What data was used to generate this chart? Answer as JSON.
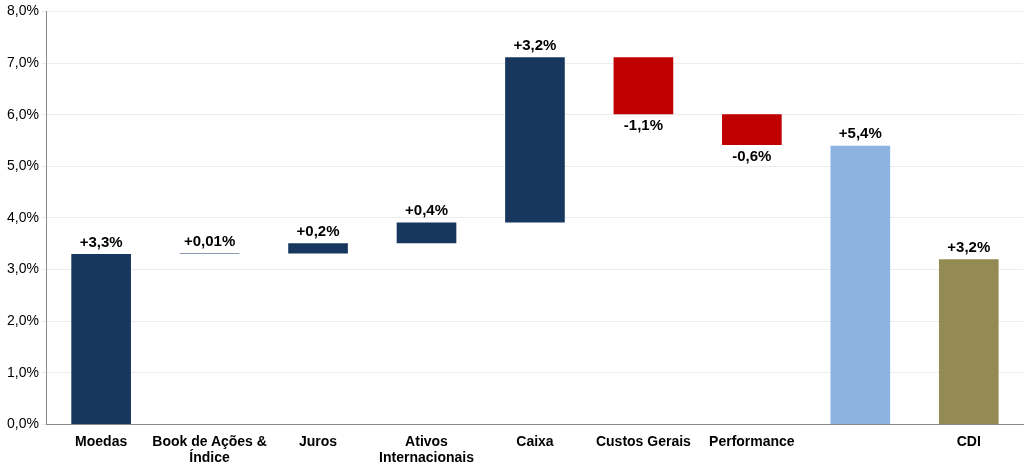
{
  "chart_data": {
    "type": "bar",
    "categories": [
      "Moedas",
      "Book de Ações & Índice",
      "Juros",
      "Ativos Internacionais",
      "Caixa",
      "Custos Gerais",
      "Performance",
      null,
      "CDI"
    ],
    "values": [
      3.3,
      0.01,
      0.2,
      0.4,
      3.2,
      -1.1,
      -0.6,
      5.4,
      3.2
    ],
    "base": [
      0,
      3.3,
      3.31,
      3.51,
      3.91,
      7.11,
      6.01,
      0,
      0
    ],
    "colors": [
      "#17375e",
      "#17375e",
      "#17375e",
      "#17375e",
      "#17375e",
      "#c00000",
      "#c00000",
      "#8db3e2",
      "#948a54"
    ],
    "value_labels": [
      "+3,3%",
      "+0,01%",
      "+0,2%",
      "+0,4%",
      "+3,2%",
      "-1,1%",
      "-0,6%",
      "+5,4%",
      "+3,2%"
    ],
    "ylim": [
      0,
      8
    ],
    "yticks": [
      {
        "value": 0,
        "label": "0,0%"
      },
      {
        "value": 1,
        "label": "1,0%"
      },
      {
        "value": 2,
        "label": "2,0%"
      },
      {
        "value": 3,
        "label": "3,0%"
      },
      {
        "value": 4,
        "label": "4,0%"
      },
      {
        "value": 5,
        "label": "5,0%"
      },
      {
        "value": 6,
        "label": "6,0%"
      },
      {
        "value": 7,
        "label": "7,0%"
      },
      {
        "value": 8,
        "label": "8,0%"
      }
    ],
    "grid": "y",
    "legend": false
  }
}
